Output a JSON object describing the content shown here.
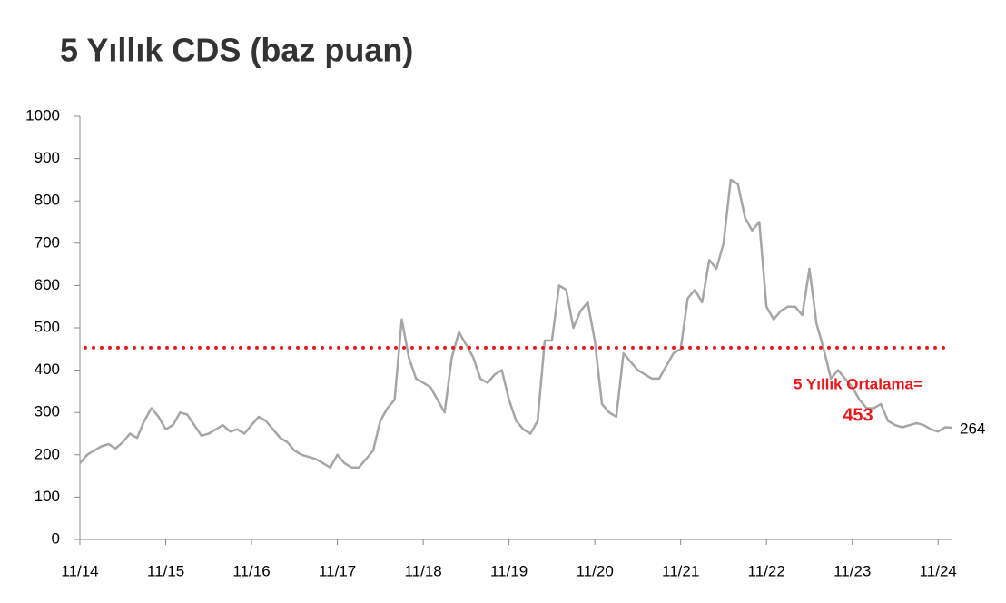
{
  "chart_data": {
    "type": "line",
    "title": "5 Yıllık CDS (baz puan)",
    "x": [
      "2014-11",
      "2014-12",
      "2015-01",
      "2015-02",
      "2015-03",
      "2015-04",
      "2015-05",
      "2015-06",
      "2015-07",
      "2015-08",
      "2015-09",
      "2015-10",
      "2015-11",
      "2015-12",
      "2016-01",
      "2016-02",
      "2016-03",
      "2016-04",
      "2016-05",
      "2016-06",
      "2016-07",
      "2016-08",
      "2016-09",
      "2016-10",
      "2016-11",
      "2016-12",
      "2017-01",
      "2017-02",
      "2017-03",
      "2017-04",
      "2017-05",
      "2017-06",
      "2017-07",
      "2017-08",
      "2017-09",
      "2017-10",
      "2017-11",
      "2017-12",
      "2018-01",
      "2018-02",
      "2018-03",
      "2018-04",
      "2018-05",
      "2018-06",
      "2018-07",
      "2018-08",
      "2018-09",
      "2018-10",
      "2018-11",
      "2018-12",
      "2019-01",
      "2019-02",
      "2019-03",
      "2019-04",
      "2019-05",
      "2019-06",
      "2019-07",
      "2019-08",
      "2019-09",
      "2019-10",
      "2019-11",
      "2019-12",
      "2020-01",
      "2020-02",
      "2020-03",
      "2020-04",
      "2020-05",
      "2020-06",
      "2020-07",
      "2020-08",
      "2020-09",
      "2020-10",
      "2020-11",
      "2020-12",
      "2021-01",
      "2021-02",
      "2021-03",
      "2021-04",
      "2021-05",
      "2021-06",
      "2021-07",
      "2021-08",
      "2021-09",
      "2021-10",
      "2021-11",
      "2021-12",
      "2022-01",
      "2022-02",
      "2022-03",
      "2022-04",
      "2022-05",
      "2022-06",
      "2022-07",
      "2022-08",
      "2022-09",
      "2022-10",
      "2022-11",
      "2022-12",
      "2023-01",
      "2023-02",
      "2023-03",
      "2023-04",
      "2023-05",
      "2023-06",
      "2023-07",
      "2023-08",
      "2023-09",
      "2023-10",
      "2023-11",
      "2023-12",
      "2024-01",
      "2024-02",
      "2024-03",
      "2024-04",
      "2024-05",
      "2024-06",
      "2024-07",
      "2024-08",
      "2024-09",
      "2024-10",
      "2024-11",
      "2024-12",
      "2025-01"
    ],
    "values": [
      180,
      200,
      210,
      220,
      225,
      215,
      230,
      250,
      240,
      280,
      310,
      290,
      260,
      270,
      300,
      295,
      270,
      245,
      250,
      260,
      270,
      255,
      260,
      250,
      270,
      290,
      280,
      260,
      240,
      230,
      210,
      200,
      195,
      190,
      180,
      170,
      200,
      180,
      170,
      170,
      190,
      210,
      280,
      310,
      330,
      520,
      430,
      380,
      370,
      360,
      330,
      300,
      430,
      490,
      460,
      430,
      380,
      370,
      390,
      400,
      330,
      280,
      260,
      250,
      280,
      470,
      470,
      600,
      590,
      500,
      540,
      560,
      470,
      320,
      300,
      290,
      440,
      420,
      400,
      390,
      380,
      380,
      410,
      440,
      450,
      570,
      590,
      560,
      660,
      640,
      700,
      850,
      840,
      760,
      730,
      750,
      550,
      520,
      540,
      550,
      550,
      530,
      640,
      510,
      450,
      380,
      400,
      380,
      360,
      330,
      310,
      310,
      320,
      280,
      270,
      265,
      270,
      275,
      270,
      260,
      255,
      265,
      264
    ],
    "color": "#a6a6a6",
    "xlim": [
      "2014-11",
      "2025-01"
    ],
    "xticks": [
      {
        "value": "2014-11",
        "label": "11/14"
      },
      {
        "value": "2015-11",
        "label": "11/15"
      },
      {
        "value": "2016-11",
        "label": "11/16"
      },
      {
        "value": "2017-11",
        "label": "11/17"
      },
      {
        "value": "2018-11",
        "label": "11/18"
      },
      {
        "value": "2019-11",
        "label": "11/19"
      },
      {
        "value": "2020-11",
        "label": "11/20"
      },
      {
        "value": "2021-11",
        "label": "11/21"
      },
      {
        "value": "2022-11",
        "label": "11/22"
      },
      {
        "value": "2023-11",
        "label": "11/23"
      },
      {
        "value": "2024-11",
        "label": "11/24"
      }
    ],
    "ylim": [
      0,
      1000
    ],
    "yticks": [
      0,
      100,
      200,
      300,
      400,
      500,
      600,
      700,
      800,
      900,
      1000
    ],
    "average": 453,
    "average_label": "5 Yıllık Ortalama=",
    "average_color": "#e8191c"
  }
}
